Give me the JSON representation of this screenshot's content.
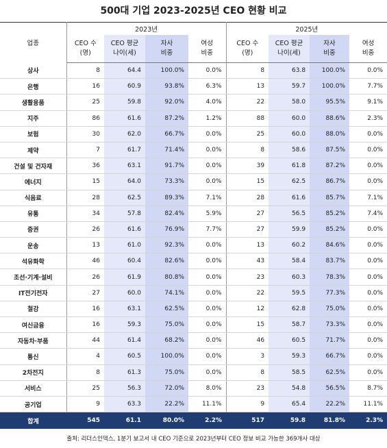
{
  "title": "500대 기업 2023-2025년 CEO 현황 비교",
  "header": {
    "category": "업종",
    "groups": [
      "2023년",
      "2025년"
    ],
    "columns": [
      [
        "CEO 수",
        "(명)"
      ],
      [
        "CEO 평균",
        "나이(세)"
      ],
      [
        "자사",
        "비중"
      ],
      [
        "여성",
        "비중"
      ]
    ]
  },
  "rows": [
    [
      "상사",
      "8",
      "64.4",
      "100.0%",
      "0.0%",
      "8",
      "63.8",
      "100.0%",
      "0.0%"
    ],
    [
      "은행",
      "16",
      "60.9",
      "93.8%",
      "6.3%",
      "13",
      "59.7",
      "100.0%",
      "7.7%"
    ],
    [
      "생활용품",
      "25",
      "59.8",
      "92.0%",
      "4.0%",
      "22",
      "58.0",
      "95.5%",
      "9.1%"
    ],
    [
      "지주",
      "86",
      "61.6",
      "87.2%",
      "1.2%",
      "88",
      "60.0",
      "88.6%",
      "2.3%"
    ],
    [
      "보험",
      "30",
      "62.0",
      "66.7%",
      "0.0%",
      "25",
      "60.0",
      "88.0%",
      "0.0%"
    ],
    [
      "제약",
      "7",
      "61.7",
      "71.4%",
      "0.0%",
      "8",
      "58.6",
      "87.5%",
      "0.0%"
    ],
    [
      "건설 및 건자재",
      "36",
      "63.1",
      "91.7%",
      "0.0%",
      "39",
      "61.8",
      "87.2%",
      "0.0%"
    ],
    [
      "에너지",
      "15",
      "64.0",
      "73.3%",
      "0.0%",
      "15",
      "62.5",
      "86.7%",
      "0.0%"
    ],
    [
      "식음료",
      "28",
      "62.5",
      "89.3%",
      "7.1%",
      "28",
      "61.6",
      "85.7%",
      "7.1%"
    ],
    [
      "유통",
      "34",
      "57.8",
      "82.4%",
      "5.9%",
      "27",
      "56.5",
      "85.2%",
      "7.4%"
    ],
    [
      "증권",
      "26",
      "61.6",
      "76.9%",
      "7.7%",
      "27",
      "59.9",
      "85.2%",
      "0.0%"
    ],
    [
      "운송",
      "13",
      "61.0",
      "92.3%",
      "0.0%",
      "13",
      "60.2",
      "84.6%",
      "0.0%"
    ],
    [
      "석유화학",
      "46",
      "60.4",
      "82.6%",
      "0.0%",
      "43",
      "58.4",
      "83.7%",
      "0.0%"
    ],
    [
      "조선·기계·설비",
      "26",
      "61.9",
      "80.8%",
      "0.0%",
      "23",
      "60.3",
      "78.3%",
      "0.0%"
    ],
    [
      "IT전기전자",
      "27",
      "60.0",
      "74.1%",
      "0.0%",
      "22",
      "59.5",
      "77.3%",
      "0.0%"
    ],
    [
      "철강",
      "16",
      "63.1",
      "62.5%",
      "0.0%",
      "12",
      "62.8",
      "75.0%",
      "0.0%"
    ],
    [
      "여신금융",
      "16",
      "59.3",
      "75.0%",
      "0.0%",
      "15",
      "58.7",
      "73.3%",
      "0.0%"
    ],
    [
      "자동차·부품",
      "44",
      "61.4",
      "68.2%",
      "0.0%",
      "46",
      "60.5",
      "71.7%",
      "0.0%"
    ],
    [
      "통신",
      "4",
      "60.5",
      "100.0%",
      "0.0%",
      "3",
      "59.3",
      "66.7%",
      "0.0%"
    ],
    [
      "2차전지",
      "8",
      "61.3",
      "75.0%",
      "0.0%",
      "8",
      "58.5",
      "62.5%",
      "0.0%"
    ],
    [
      "서비스",
      "25",
      "56.3",
      "72.0%",
      "8.0%",
      "23",
      "54.8",
      "56.5%",
      "8.7%"
    ],
    [
      "공기업",
      "9",
      "63.3",
      "22.2%",
      "11.1%",
      "9",
      "65.4",
      "22.2%",
      "11.1%"
    ]
  ],
  "total": [
    "합계",
    "545",
    "61.1",
    "80.0%",
    "2.2%",
    "517",
    "59.8",
    "81.8%",
    "2.3%"
  ],
  "source": "출처: 리더스인덱스, 1분기 보고서 내 CEO 기준으로 2023년부터 CEO 정보 비교 가능한 369개사 대상"
}
